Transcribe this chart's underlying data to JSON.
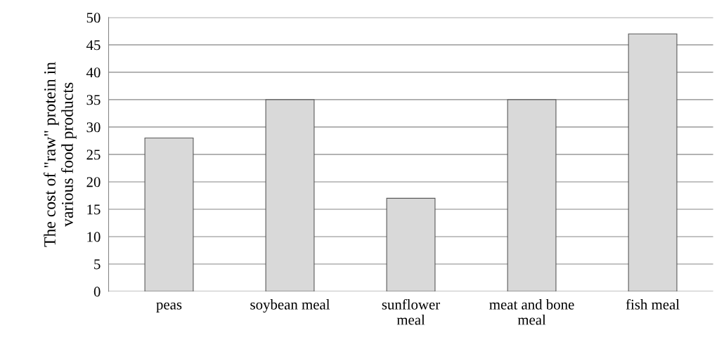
{
  "chart_data": {
    "type": "bar",
    "ylabel": "The cost of \"raw\" protein in various food products",
    "categories": [
      "peas",
      "soybean meal",
      "sunflower meal",
      "meat and bone meal",
      "fish meal"
    ],
    "values": [
      28,
      35,
      17,
      35,
      47
    ],
    "color": "#d9d9d9",
    "ylim": [
      0,
      50
    ],
    "yticks": [
      0,
      5,
      10,
      15,
      20,
      25,
      30,
      35,
      40,
      45,
      50
    ],
    "grid": "y"
  }
}
